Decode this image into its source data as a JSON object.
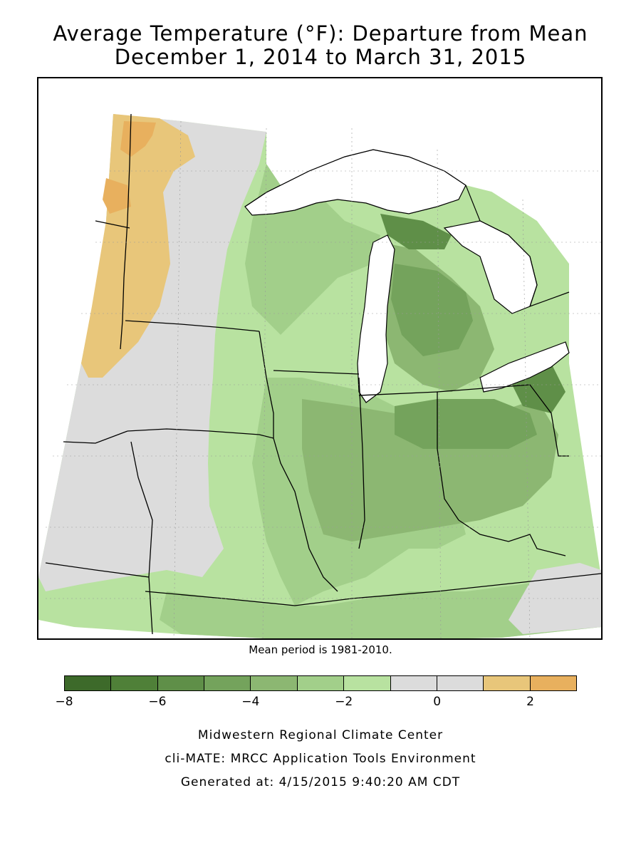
{
  "title": {
    "line1": "Average Temperature (°F): Departure from Mean",
    "line2": "December 1, 2014 to March 31, 2015"
  },
  "map": {
    "mean_note": "Mean period is 1981-2010.",
    "legend": {
      "colors": [
        "#3d6a2a",
        "#4f8038",
        "#5f8f48",
        "#74a35c",
        "#8cb772",
        "#a2cf8a",
        "#b8e2a0",
        "#dcdcdc",
        "#dcdcdc",
        "#e8c67a",
        "#e8b05e"
      ],
      "tick_labels": [
        "−8",
        "−6",
        "−4",
        "−2",
        "0",
        "2"
      ]
    },
    "region_colors": {
      "water": "#ffffff",
      "gray_band": "#dcdcdc",
      "warm_1": "#e8c67a",
      "warm_2": "#e8b05e",
      "light_green": "#b8e2a0",
      "mid_green": "#a2cf8a",
      "green": "#8cb772",
      "dark_green": "#74a35c",
      "darker_green": "#5f8f48"
    }
  },
  "credits": {
    "line1": "Midwestern Regional Climate Center",
    "line2": "cli-MATE: MRCC Application Tools Environment",
    "line3": "Generated at: 4/15/2015 9:40:20 AM CDT"
  }
}
